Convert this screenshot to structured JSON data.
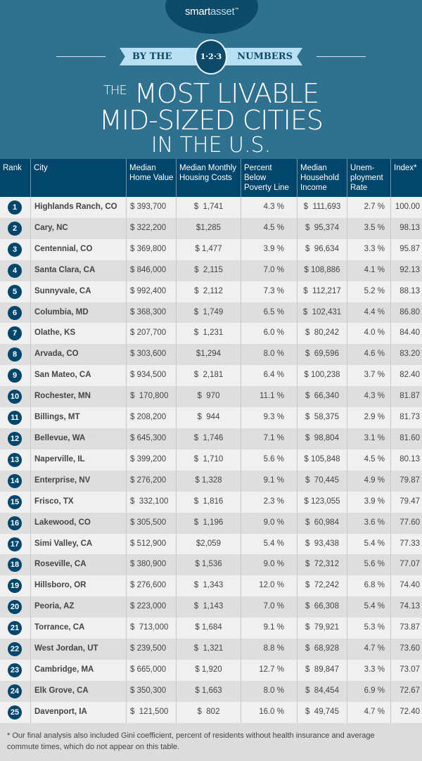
{
  "brand": {
    "logo_smart": "smart",
    "logo_asset": "asset",
    "logo_tm": "™",
    "badge_left": "BY THE",
    "badge_number": "1·2·3",
    "badge_right": "NUMBERS"
  },
  "title": {
    "the": "THE",
    "line1": "MOST LIVABLE",
    "line2": "MID-SIZED CITIES",
    "line3": "IN THE U.S."
  },
  "colors": {
    "header_bg": "#30718f",
    "table_header": "#03466b",
    "row_light": "#f0f0f0",
    "row_dark": "#dedede"
  },
  "chart_data": {
    "type": "table",
    "columns": [
      "Rank",
      "City",
      "Median Home Value",
      "Median Monthly Housing Costs",
      "Percent Below Poverty Line",
      "Median Household Income",
      "Unem-ployment Rate",
      "Index*"
    ],
    "rows": [
      [
        "1",
        "Highlands Ranch, CO",
        "$ 393,700",
        "$  1,741",
        "4.3 %",
        "$  111,693",
        "2.7 %",
        "100.00"
      ],
      [
        "2",
        "Cary, NC",
        "$ 322,200",
        "$1,285",
        "4.5 %",
        "$  95,374",
        "3.5 %",
        "98.13"
      ],
      [
        "3",
        "Centennial, CO",
        "$ 369,800",
        "$ 1,477",
        "3.9 %",
        "$  96,634",
        "3.3 %",
        "95.87"
      ],
      [
        "4",
        "Santa Clara, CA",
        "$ 846,000",
        "$  2,115",
        "7.0 %",
        "$ 108,886",
        "4.1 %",
        "92.13"
      ],
      [
        "5",
        "Sunnyvale, CA",
        "$ 992,400",
        "$  2,112",
        "7.3 %",
        "$  112,217",
        "5.2 %",
        "88.13"
      ],
      [
        "6",
        "Columbia, MD",
        "$ 368,300",
        "$  1,749",
        "6.5 %",
        "$  102,431",
        "4.4 %",
        "86.80"
      ],
      [
        "7",
        "Olathe, KS",
        "$ 207,700",
        "$  1,231",
        "6.0 %",
        "$  80,242",
        "4.0 %",
        "84.40"
      ],
      [
        "8",
        "Arvada, CO",
        "$ 303,600",
        "$1,294",
        "8.0 %",
        "$  69,596",
        "4.6 %",
        "83.20"
      ],
      [
        "9",
        "San Mateo, CA",
        "$ 934,500",
        "$  2,181",
        "6.4 %",
        "$ 100,238",
        "3.7 %",
        "82.40"
      ],
      [
        "10",
        "Rochester, MN",
        "$  170,800",
        "$  970",
        "11.1 %",
        "$  66,340",
        "4.3 %",
        "81.87"
      ],
      [
        "11",
        "Billings, MT",
        "$ 208,200",
        "$  944",
        "9.3 %",
        "$  58,375",
        "2.9 %",
        "81.73"
      ],
      [
        "12",
        "Bellevue, WA",
        "$ 645,300",
        "$  1,746",
        "7.1 %",
        "$  98,804",
        "3.1 %",
        "81.60"
      ],
      [
        "13",
        "Naperville, IL",
        "$ 399,200",
        "$  1,710",
        "5.6 %",
        "$ 105,848",
        "4.5 %",
        "80.13"
      ],
      [
        "14",
        "Enterprise, NV",
        "$ 276,200",
        "$ 1,328",
        "9.1 %",
        "$  70,445",
        "4.9 %",
        "79.87"
      ],
      [
        "15",
        "Frisco, TX",
        "$  332,100",
        "$  1,816",
        "2.3 %",
        "$ 123,055",
        "3.9 %",
        "79.47"
      ],
      [
        "16",
        "Lakewood, CO",
        "$ 305,500",
        "$  1,196",
        "9.0 %",
        "$  60,984",
        "3.6 %",
        "77.60"
      ],
      [
        "17",
        "Simi Valley, CA",
        "$ 512,900",
        "$2,059",
        "5.4 %",
        "$  93,438",
        "5.4 %",
        "77.33"
      ],
      [
        "18",
        "Roseville, CA",
        "$ 380,900",
        "$ 1,536",
        "9.0 %",
        "$  72,312",
        "5.6 %",
        "77.07"
      ],
      [
        "19",
        "Hillsboro, OR",
        "$ 276,600",
        "$  1,343",
        "12.0 %",
        "$  72,242",
        "6.8 %",
        "74.40"
      ],
      [
        "20",
        "Peoria, AZ",
        "$ 223,000",
        "$  1,143",
        "7.0 %",
        "$  66,308",
        "5.4 %",
        "74.13"
      ],
      [
        "21",
        "Torrance, CA",
        "$  713,000",
        "$ 1,684",
        "9.1 %",
        "$  79,921",
        "5.3 %",
        "73.87"
      ],
      [
        "22",
        "West Jordan, UT",
        "$ 239,500",
        "$  1,321",
        "8.8 %",
        "$  68,928",
        "4.7 %",
        "73.60"
      ],
      [
        "23",
        "Cambridge, MA",
        "$ 665,000",
        "$ 1,920",
        "12.7 %",
        "$  89,847",
        "3.3 %",
        "73.07"
      ],
      [
        "24",
        "Elk Grove, CA",
        "$ 350,300",
        "$ 1,663",
        "8.0 %",
        "$  84,454",
        "6.9 %",
        "72.67"
      ],
      [
        "25",
        "Davenport, IA",
        "$  121,500",
        "$  802",
        "16.0 %",
        "$  49,745",
        "4.7 %",
        "72.40"
      ]
    ]
  },
  "footnote": "* Our final analysis also included Gini coefficient, percent of residents without health insurance and average commute times, which do not appear on this table."
}
